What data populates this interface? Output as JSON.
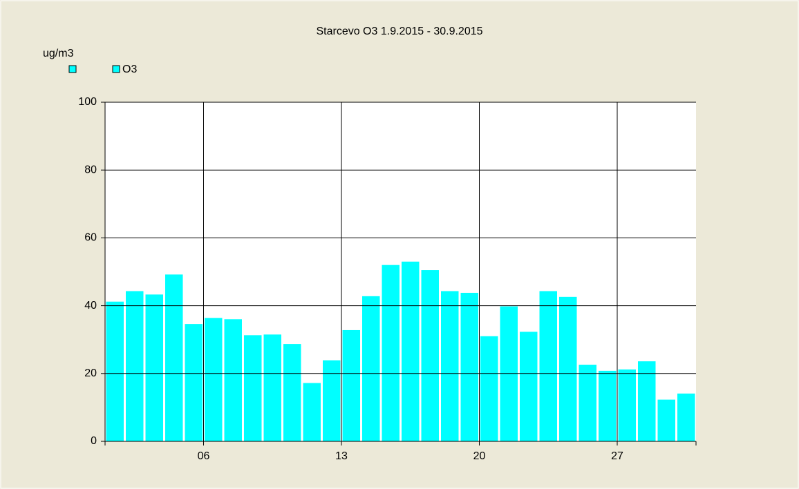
{
  "chart_data": {
    "type": "bar",
    "title": "Starcevo O3    1.9.2015 - 30.9.2015",
    "y_label": "ug/m3",
    "x": [
      1,
      2,
      3,
      4,
      5,
      6,
      7,
      8,
      9,
      10,
      11,
      12,
      13,
      14,
      15,
      16,
      17,
      18,
      19,
      20,
      21,
      22,
      23,
      24,
      25,
      26,
      27,
      28,
      29,
      30
    ],
    "series": [
      {
        "name": "O3",
        "color": "#00ffff",
        "values": [
          41.2,
          44.3,
          43.3,
          49.2,
          34.6,
          36.4,
          36,
          31.3,
          31.5,
          28.7,
          17.2,
          23.9,
          32.8,
          42.8,
          52,
          53,
          50.5,
          44.3,
          43.8,
          31,
          39.8,
          32.3,
          44.3,
          42.6,
          22.6,
          20.8,
          21.2,
          23.6,
          12.3,
          14.1
        ]
      }
    ],
    "xlim": [
      1,
      31
    ],
    "xticks": [
      {
        "value": 6,
        "label": "06"
      },
      13,
      20,
      27
    ],
    "ylim": [
      0,
      100
    ],
    "yticks": [
      0,
      20,
      40,
      60,
      80,
      100
    ],
    "grid": true
  }
}
